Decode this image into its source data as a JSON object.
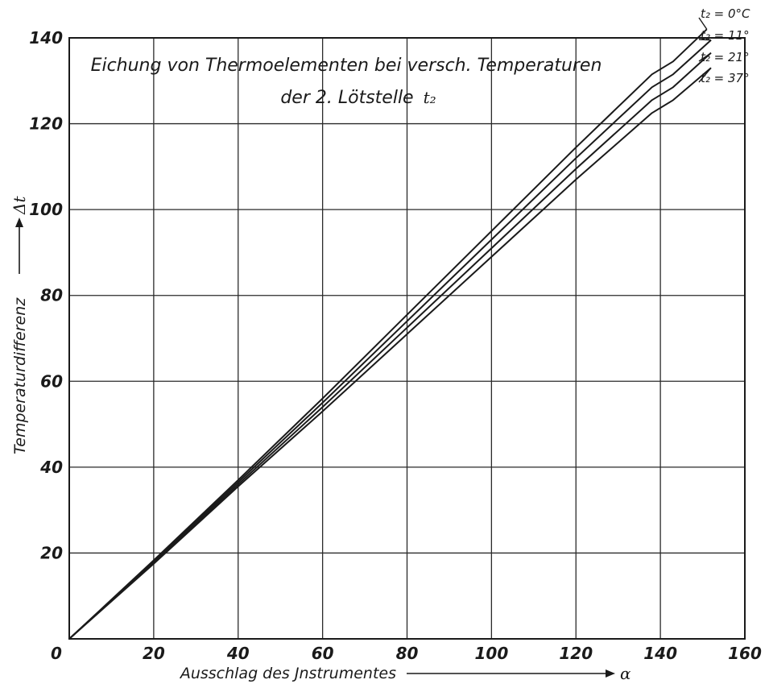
{
  "chart_data": {
    "type": "line",
    "title_line1": "Eichung von Thermoelementen bei versch. Temperaturen",
    "title_line2": "der 2. Lötstelle",
    "title_symbol": "t₂",
    "xlabel": "Ausschlag des Jnstrumentes",
    "xsymbol": "α",
    "ylabel": "Temperaturdifferenz",
    "ysymbol": "Δt",
    "xlim": [
      0,
      160
    ],
    "ylim": [
      0,
      140
    ],
    "xticks": [
      "0",
      "20",
      "40",
      "60",
      "80",
      "100",
      "120",
      "140",
      "160"
    ],
    "yticks": [
      "20",
      "40",
      "60",
      "80",
      "100",
      "120",
      "140"
    ],
    "grid": true,
    "legend_placement": "top-right, at line ends",
    "series": [
      {
        "name": "t₂ = 0°C",
        "x": [
          0,
          20,
          40,
          60,
          80,
          100,
          120,
          138,
          143,
          151
        ],
        "y": [
          0,
          18.3,
          37,
          56,
          75.5,
          95,
          114.5,
          131.5,
          134.5,
          142
        ]
      },
      {
        "name": "t₂ = 11°",
        "x": [
          0,
          20,
          40,
          60,
          80,
          100,
          120,
          138,
          143,
          152
        ],
        "y": [
          0,
          18,
          36.5,
          55,
          74,
          93,
          112,
          128.5,
          131.5,
          139.5
        ]
      },
      {
        "name": "t₂ = 21°",
        "x": [
          0,
          20,
          40,
          60,
          80,
          100,
          120,
          138,
          143,
          152
        ],
        "y": [
          0,
          17.8,
          36,
          54,
          72.5,
          91,
          109.5,
          125.5,
          128.5,
          136.5
        ]
      },
      {
        "name": "t₂ = 37°",
        "x": [
          0,
          20,
          40,
          60,
          80,
          100,
          120,
          138,
          143,
          152
        ],
        "y": [
          0,
          17.5,
          35.5,
          53,
          71,
          89,
          107,
          122.5,
          125.5,
          133
        ]
      }
    ]
  }
}
